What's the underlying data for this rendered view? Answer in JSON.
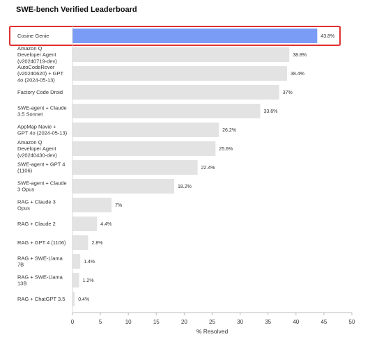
{
  "chart_data": {
    "type": "bar",
    "orientation": "horizontal",
    "title": "SWE-bench Verified Leaderboard",
    "xlabel": "% Resolved",
    "ylabel": "",
    "xlim": [
      0,
      50
    ],
    "xticks": [
      0,
      5,
      10,
      15,
      20,
      25,
      30,
      35,
      40,
      45,
      50
    ],
    "categories": [
      [
        "Cosine Genie"
      ],
      [
        "Amazon Q",
        "Developer Agent",
        "(v20240719-dev)"
      ],
      [
        "AutoCodeRover",
        "(v20240620) + GPT",
        "4o (2024-05-13)"
      ],
      [
        "Factory Code Droid"
      ],
      [
        "SWE-agent + Claude",
        "3.5 Sonnet"
      ],
      [
        "AppMap Navie +",
        "GPT 4o (2024-05-13)"
      ],
      [
        "Amazon Q",
        "Developer Agent",
        "(v20240430-dev)"
      ],
      [
        "SWE-agent + GPT 4",
        "(1106)"
      ],
      [
        "SWE-agent + Claude",
        "3 Opus"
      ],
      [
        "RAG + Claude 3",
        "Opus"
      ],
      [
        "RAG + Claude 2"
      ],
      [
        "RAG + GPT 4 (1106)"
      ],
      [
        "RAG + SWE-Llama",
        "7B"
      ],
      [
        "RAG + SWE-Llama",
        "13B"
      ],
      [
        "RAG + ChatGPT 3.5"
      ]
    ],
    "values": [
      43.8,
      38.8,
      38.4,
      37,
      33.6,
      26.2,
      25.6,
      22.4,
      18.2,
      7,
      4.4,
      2.8,
      1.4,
      1.2,
      0.4
    ],
    "value_labels": [
      "43.8%",
      "38.8%",
      "38.4%",
      "37%",
      "33.6%",
      "26.2%",
      "25.6%",
      "22.4%",
      "18.2%",
      "7%",
      "4.4%",
      "2.8%",
      "1.4%",
      "1.2%",
      "0.4%"
    ],
    "highlight_index": 0,
    "colors": {
      "highlight_bar": "#7b9cf6",
      "bar": "#e3e3e3",
      "highlight_box": "#e03030",
      "axis": "#bdbdbd"
    }
  }
}
